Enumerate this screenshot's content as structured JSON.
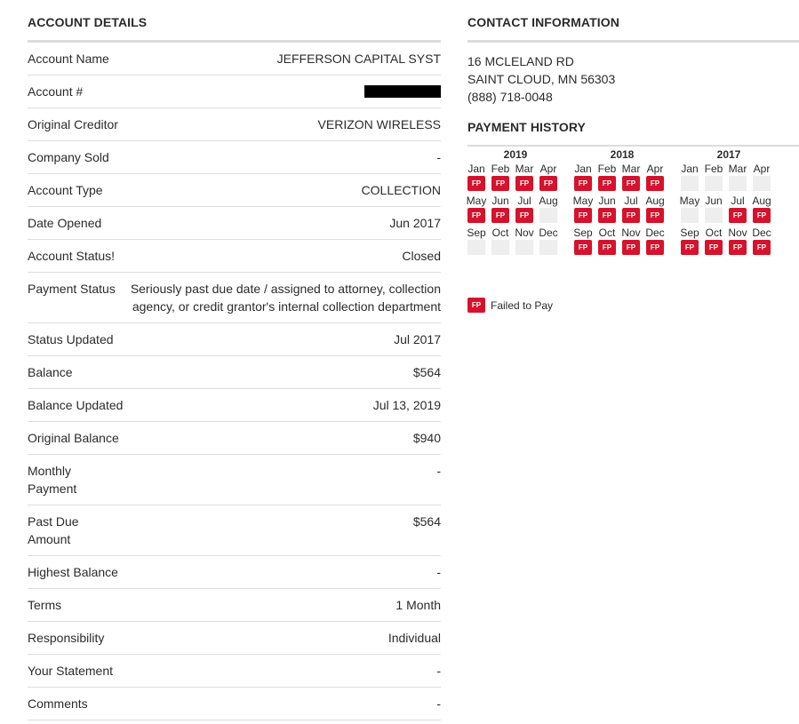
{
  "account_details": {
    "title": "ACCOUNT DETAILS",
    "rows": [
      {
        "label": "Account Name",
        "value": "JEFFERSON CAPITAL SYST"
      },
      {
        "label": "Account #",
        "value": ""
      },
      {
        "label": "Original Creditor",
        "value": "VERIZON WIRELESS"
      },
      {
        "label": "Company Sold",
        "value": "-"
      },
      {
        "label": "Account Type",
        "value": "COLLECTION"
      },
      {
        "label": "Date Opened",
        "value": "Jun 2017"
      },
      {
        "label": "Account Status!",
        "value": "Closed"
      },
      {
        "label": "Payment Status",
        "value": "Seriously past due date / assigned to attorney, collection agency, or credit grantor's internal collection department"
      },
      {
        "label": "Status Updated",
        "value": "Jul 2017"
      },
      {
        "label": "Balance",
        "value": "$564"
      },
      {
        "label": "Balance Updated",
        "value": "Jul 13, 2019"
      },
      {
        "label": "Original Balance",
        "value": "$940"
      },
      {
        "label": "Monthly Payment",
        "value": "-"
      },
      {
        "label": "Past Due Amount",
        "value": "$564"
      },
      {
        "label": "Highest Balance",
        "value": "-"
      },
      {
        "label": "Terms",
        "value": "1 Month"
      },
      {
        "label": "Responsibility",
        "value": "Individual"
      },
      {
        "label": "Your Statement",
        "value": "-"
      },
      {
        "label": "Comments",
        "value": "-"
      }
    ]
  },
  "contact": {
    "title": "CONTACT INFORMATION",
    "address_line1": "16 MCLELAND RD",
    "address_line2": "SAINT CLOUD, MN 56303",
    "phone": "(888) 718-0048"
  },
  "payment_history": {
    "title": "PAYMENT HISTORY",
    "fp_label": "FP",
    "fp_color": "#d5132d",
    "years": [
      {
        "year": "2019",
        "rows": [
          {
            "months": [
              "Jan",
              "Feb",
              "Mar",
              "Apr"
            ],
            "status": [
              "FP",
              "FP",
              "FP",
              "FP"
            ]
          },
          {
            "months": [
              "May",
              "Jun",
              "Jul",
              "Aug"
            ],
            "status": [
              "FP",
              "FP",
              "FP",
              ""
            ]
          },
          {
            "months": [
              "Sep",
              "Oct",
              "Nov",
              "Dec"
            ],
            "status": [
              "",
              "",
              "",
              ""
            ]
          }
        ]
      },
      {
        "year": "2018",
        "rows": [
          {
            "months": [
              "Jan",
              "Feb",
              "Mar",
              "Apr"
            ],
            "status": [
              "FP",
              "FP",
              "FP",
              "FP"
            ]
          },
          {
            "months": [
              "May",
              "Jun",
              "Jul",
              "Aug"
            ],
            "status": [
              "FP",
              "FP",
              "FP",
              "FP"
            ]
          },
          {
            "months": [
              "Sep",
              "Oct",
              "Nov",
              "Dec"
            ],
            "status": [
              "FP",
              "FP",
              "FP",
              "FP"
            ]
          }
        ]
      },
      {
        "year": "2017",
        "rows": [
          {
            "months": [
              "Jan",
              "Feb",
              "Mar",
              "Apr"
            ],
            "status": [
              "",
              "",
              "",
              ""
            ]
          },
          {
            "months": [
              "May",
              "Jun",
              "Jul",
              "Aug"
            ],
            "status": [
              "",
              "",
              "FP",
              "FP"
            ]
          },
          {
            "months": [
              "Sep",
              "Oct",
              "Nov",
              "Dec"
            ],
            "status": [
              "FP",
              "FP",
              "FP",
              "FP"
            ]
          }
        ]
      }
    ],
    "legend": {
      "label": "Failed to Pay"
    }
  }
}
